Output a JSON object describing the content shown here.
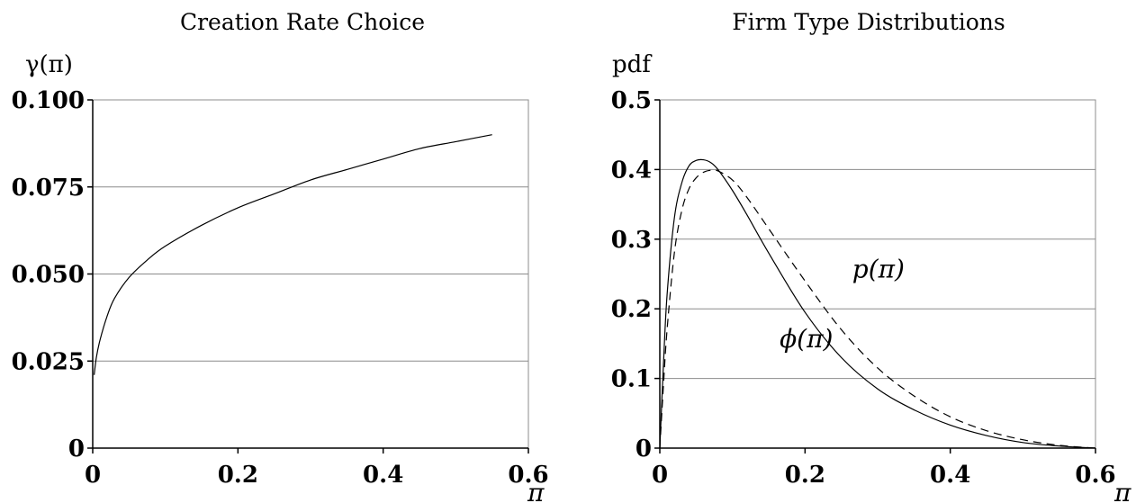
{
  "chart_data": [
    {
      "type": "line",
      "title": "Creation Rate Choice",
      "ylabel": "γ(π)",
      "xlabel": "π",
      "xlim": [
        0,
        0.6
      ],
      "ylim": [
        0,
        0.1
      ],
      "xticks": [
        "0",
        "0.2",
        "0.4",
        "0.6"
      ],
      "yticks": [
        "0",
        "0.025",
        "0.050",
        "0.075",
        "0.100"
      ],
      "grid": "horizontal",
      "series": [
        {
          "style": "solid",
          "x": [
            0.002,
            0.005,
            0.01,
            0.02,
            0.03,
            0.05,
            0.075,
            0.1,
            0.15,
            0.2,
            0.25,
            0.3,
            0.35,
            0.4,
            0.45,
            0.5,
            0.55
          ],
          "y": [
            0.021,
            0.026,
            0.031,
            0.038,
            0.043,
            0.049,
            0.054,
            0.058,
            0.064,
            0.069,
            0.073,
            0.077,
            0.08,
            0.083,
            0.086,
            0.088,
            0.09
          ]
        }
      ]
    },
    {
      "type": "line",
      "title": "Firm Type Distributions",
      "ylabel": "pdf",
      "xlabel": "π",
      "xlim": [
        0,
        0.6
      ],
      "ylim": [
        0,
        0.5
      ],
      "xticks": [
        "0",
        "0.2",
        "0.4",
        "0.6"
      ],
      "yticks": [
        "0",
        "0.1",
        "0.2",
        "0.3",
        "0.4",
        "0.5"
      ],
      "grid": "horizontal",
      "series": [
        {
          "name": "ϕ(π)",
          "style": "solid",
          "x": [
            0,
            0.005,
            0.01,
            0.02,
            0.03,
            0.04,
            0.05,
            0.06,
            0.07,
            0.08,
            0.1,
            0.12,
            0.15,
            0.2,
            0.25,
            0.3,
            0.35,
            0.4,
            0.45,
            0.5,
            0.55,
            0.6
          ],
          "y": [
            0,
            0.12,
            0.22,
            0.33,
            0.38,
            0.405,
            0.413,
            0.414,
            0.41,
            0.4,
            0.37,
            0.335,
            0.28,
            0.195,
            0.13,
            0.085,
            0.055,
            0.033,
            0.018,
            0.008,
            0.003,
            0.0
          ]
        },
        {
          "name": "p(π)",
          "style": "dashed",
          "x": [
            0,
            0.005,
            0.01,
            0.02,
            0.03,
            0.04,
            0.05,
            0.06,
            0.07,
            0.08,
            0.1,
            0.12,
            0.15,
            0.2,
            0.25,
            0.3,
            0.35,
            0.4,
            0.45,
            0.5,
            0.55,
            0.6
          ],
          "y": [
            0,
            0.09,
            0.17,
            0.28,
            0.34,
            0.372,
            0.388,
            0.396,
            0.399,
            0.398,
            0.385,
            0.36,
            0.315,
            0.24,
            0.17,
            0.115,
            0.075,
            0.045,
            0.025,
            0.012,
            0.004,
            0.0
          ]
        }
      ],
      "annotations": [
        {
          "text": "p(π)",
          "x": 0.265,
          "y": 0.245
        },
        {
          "text": "ϕ(π)",
          "x": 0.165,
          "y": 0.145
        }
      ]
    }
  ]
}
